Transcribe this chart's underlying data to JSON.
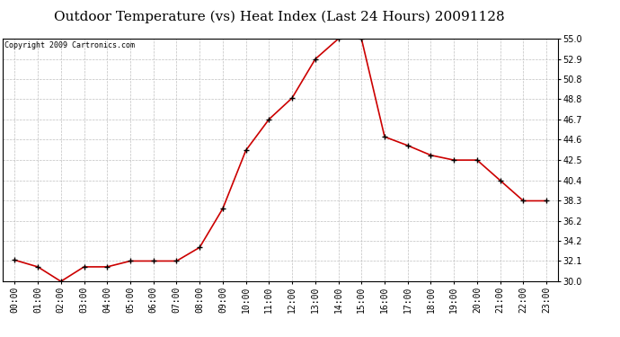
{
  "title": "Outdoor Temperature (vs) Heat Index (Last 24 Hours) 20091128",
  "copyright": "Copyright 2009 Cartronics.com",
  "x_labels": [
    "00:00",
    "01:00",
    "02:00",
    "03:00",
    "04:00",
    "05:00",
    "06:00",
    "07:00",
    "08:00",
    "09:00",
    "10:00",
    "11:00",
    "12:00",
    "13:00",
    "14:00",
    "15:00",
    "16:00",
    "17:00",
    "18:00",
    "19:00",
    "20:00",
    "21:00",
    "22:00",
    "23:00"
  ],
  "y_values": [
    32.2,
    31.5,
    30.0,
    31.5,
    31.5,
    32.1,
    32.1,
    32.1,
    33.5,
    37.5,
    43.5,
    46.7,
    48.9,
    52.9,
    55.0,
    55.0,
    44.9,
    44.0,
    43.0,
    42.5,
    42.5,
    40.4,
    38.3,
    38.3
  ],
  "line_color": "#cc0000",
  "marker_color": "#000000",
  "background_color": "#ffffff",
  "grid_color": "#c0c0c0",
  "ylim_min": 30.0,
  "ylim_max": 55.0,
  "yticks": [
    30.0,
    32.1,
    34.2,
    36.2,
    38.3,
    40.4,
    42.5,
    44.6,
    46.7,
    48.8,
    50.8,
    52.9,
    55.0
  ],
  "title_fontsize": 11,
  "copyright_fontsize": 6,
  "tick_fontsize": 7
}
